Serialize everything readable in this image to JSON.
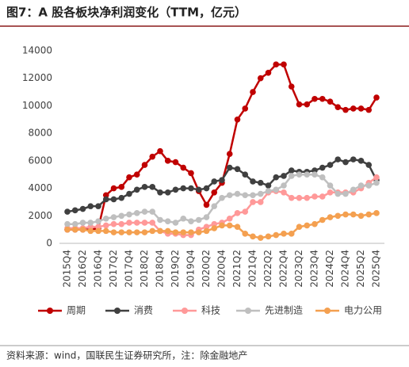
{
  "chart_data": {
    "type": "line",
    "title": "图7：A 股各板块净利润变化（TTM，亿元）",
    "source": "资料来源：wind，国联民生证券研究所，注：除金融地产",
    "categories": [
      "2015Q4",
      null,
      "2016Q2",
      null,
      "2016Q4",
      null,
      "2017Q2",
      null,
      "2017Q4",
      null,
      "2018Q2",
      null,
      "2018Q4",
      null,
      "2019Q2",
      null,
      "2019Q4",
      null,
      "2020Q2",
      null,
      "2020Q4",
      null,
      "2021Q2",
      null,
      "2021Q4",
      null,
      "2022Q2",
      null,
      "2022Q4",
      null,
      "2023Q2",
      null,
      "2023Q4",
      null,
      "2024Q2",
      null,
      "2024Q4",
      null,
      "2025Q2",
      null,
      "2025Q4"
    ],
    "ylim": [
      0,
      14000
    ],
    "yticks": [
      0,
      2000,
      4000,
      6000,
      8000,
      10000,
      12000,
      14000
    ],
    "series": [
      {
        "name": "周期",
        "color": "#c00000",
        "values": [
          1000,
          1000,
          1000,
          1000,
          1100,
          3500,
          4000,
          4100,
          4800,
          5000,
          5700,
          6300,
          6700,
          6000,
          5900,
          5500,
          5100,
          3800,
          2800,
          3700,
          4400,
          6500,
          9000,
          9800,
          11000,
          12000,
          12400,
          13000,
          13000,
          11400,
          10100,
          10100,
          10500,
          10500,
          10300,
          9900,
          9700,
          9800,
          9800,
          9700,
          10600
        ]
      },
      {
        "name": "消费",
        "color": "#404040",
        "values": [
          2300,
          2400,
          2500,
          2700,
          2700,
          3200,
          3200,
          3300,
          3600,
          3900,
          4100,
          4100,
          3700,
          3700,
          3900,
          4000,
          4000,
          3900,
          4000,
          4500,
          4600,
          5500,
          5400,
          5000,
          4500,
          4400,
          4200,
          4800,
          4900,
          5300,
          5200,
          5200,
          5300,
          5500,
          5700,
          6100,
          5900,
          6100,
          6000,
          5700,
          4600
        ]
      },
      {
        "name": "科技",
        "color": "#ff9999",
        "values": [
          1100,
          1100,
          1100,
          1200,
          1200,
          1300,
          1400,
          1400,
          1500,
          1500,
          1500,
          1500,
          900,
          700,
          700,
          600,
          600,
          1000,
          1200,
          1400,
          1500,
          1800,
          2200,
          2300,
          3000,
          3000,
          3700,
          3800,
          3700,
          3300,
          3300,
          3300,
          3400,
          3400,
          3700,
          3700,
          3700,
          3700,
          4000,
          4400,
          4800
        ]
      },
      {
        "name": "先进制造",
        "color": "#bfbfbf",
        "values": [
          1400,
          1400,
          1500,
          1500,
          1600,
          1800,
          1900,
          2000,
          2100,
          2200,
          2300,
          2300,
          1700,
          1600,
          1500,
          1800,
          1600,
          1700,
          1900,
          2700,
          3300,
          3500,
          3600,
          3500,
          3500,
          3600,
          3800,
          3900,
          4200,
          4900,
          5000,
          5000,
          5000,
          4800,
          4200,
          3600,
          3600,
          3900,
          4200,
          4200,
          4400
        ]
      },
      {
        "name": "电力公用",
        "color": "#f4a050",
        "values": [
          1000,
          1000,
          1000,
          900,
          900,
          900,
          800,
          800,
          800,
          800,
          800,
          900,
          900,
          900,
          800,
          800,
          800,
          800,
          900,
          1100,
          1300,
          1300,
          1200,
          700,
          500,
          400,
          500,
          600,
          700,
          700,
          1200,
          1300,
          1400,
          1700,
          1900,
          2000,
          2100,
          2100,
          2000,
          2100,
          2200
        ]
      }
    ]
  }
}
